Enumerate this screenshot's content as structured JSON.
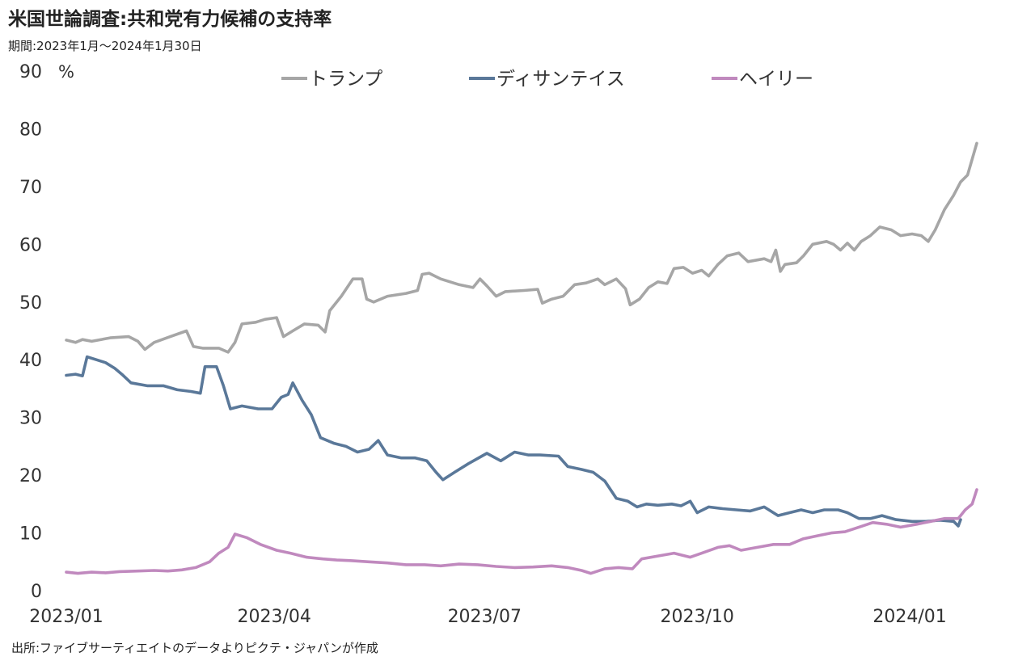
{
  "header": {
    "title": "米国世論調査:共和党有力候補の支持率",
    "period": "期間:2023年1月～2024年1月30日"
  },
  "footer": {
    "source": "出所:ファイブサーティエイトのデータよりピクテ・ジャパンが作成"
  },
  "chart_data": {
    "type": "line",
    "title": "米国世論調査:共和党有力候補の支持率",
    "subtitle": "期間:2023年1月～2024年1月30日",
    "ylabel": "%",
    "ylim": [
      0,
      90
    ],
    "yticks": [
      "0",
      "10",
      "20",
      "30",
      "40",
      "50",
      "60",
      "70",
      "80",
      "90"
    ],
    "xlim": [
      "2023-01-01",
      "2024-01-30"
    ],
    "xticks": [
      {
        "label": "2023/01",
        "date": "2023-01-01"
      },
      {
        "label": "2023/04",
        "date": "2023-04-01"
      },
      {
        "label": "2023/07",
        "date": "2023-07-01"
      },
      {
        "label": "2023/10",
        "date": "2023-10-01"
      },
      {
        "label": "2024/01",
        "date": "2024-01-01"
      }
    ],
    "grid": false,
    "legend_position": "top",
    "series": [
      {
        "name": "トランプ",
        "color": "#a6a6a6",
        "points": [
          [
            "2023-01-01",
            43.4
          ],
          [
            "2023-01-05",
            43.0
          ],
          [
            "2023-01-08",
            43.5
          ],
          [
            "2023-01-12",
            43.2
          ],
          [
            "2023-01-20",
            43.8
          ],
          [
            "2023-01-28",
            44.0
          ],
          [
            "2023-02-01",
            43.2
          ],
          [
            "2023-02-04",
            41.8
          ],
          [
            "2023-02-08",
            43.0
          ],
          [
            "2023-02-15",
            44.0
          ],
          [
            "2023-02-22",
            45.0
          ],
          [
            "2023-02-25",
            42.3
          ],
          [
            "2023-03-01",
            42.0
          ],
          [
            "2023-03-08",
            42.0
          ],
          [
            "2023-03-12",
            41.3
          ],
          [
            "2023-03-15",
            43.0
          ],
          [
            "2023-03-18",
            46.2
          ],
          [
            "2023-03-24",
            46.5
          ],
          [
            "2023-03-28",
            47.0
          ],
          [
            "2023-04-02",
            47.3
          ],
          [
            "2023-04-05",
            44.0
          ],
          [
            "2023-04-09",
            45.0
          ],
          [
            "2023-04-14",
            46.2
          ],
          [
            "2023-04-20",
            46.0
          ],
          [
            "2023-04-23",
            44.8
          ],
          [
            "2023-04-25",
            48.5
          ],
          [
            "2023-04-30",
            51.0
          ],
          [
            "2023-05-05",
            54.0
          ],
          [
            "2023-05-09",
            54.0
          ],
          [
            "2023-05-11",
            50.5
          ],
          [
            "2023-05-14",
            50.0
          ],
          [
            "2023-05-20",
            51.0
          ],
          [
            "2023-05-28",
            51.5
          ],
          [
            "2023-06-02",
            52.0
          ],
          [
            "2023-06-04",
            54.8
          ],
          [
            "2023-06-07",
            55.0
          ],
          [
            "2023-06-12",
            54.0
          ],
          [
            "2023-06-20",
            53.0
          ],
          [
            "2023-06-26",
            52.5
          ],
          [
            "2023-06-29",
            54.0
          ],
          [
            "2023-07-02",
            52.8
          ],
          [
            "2023-07-06",
            51.0
          ],
          [
            "2023-07-10",
            51.8
          ],
          [
            "2023-07-18",
            52.0
          ],
          [
            "2023-07-24",
            52.2
          ],
          [
            "2023-07-26",
            49.8
          ],
          [
            "2023-07-30",
            50.5
          ],
          [
            "2023-08-04",
            51.0
          ],
          [
            "2023-08-09",
            53.0
          ],
          [
            "2023-08-14",
            53.3
          ],
          [
            "2023-08-19",
            54.0
          ],
          [
            "2023-08-22",
            53.0
          ],
          [
            "2023-08-27",
            54.0
          ],
          [
            "2023-08-31",
            52.3
          ],
          [
            "2023-09-02",
            49.5
          ],
          [
            "2023-09-06",
            50.5
          ],
          [
            "2023-09-10",
            52.5
          ],
          [
            "2023-09-14",
            53.5
          ],
          [
            "2023-09-18",
            53.2
          ],
          [
            "2023-09-21",
            55.8
          ],
          [
            "2023-09-25",
            56.0
          ],
          [
            "2023-09-29",
            55.0
          ],
          [
            "2023-10-03",
            55.5
          ],
          [
            "2023-10-06",
            54.5
          ],
          [
            "2023-10-10",
            56.5
          ],
          [
            "2023-10-14",
            58.0
          ],
          [
            "2023-10-19",
            58.5
          ],
          [
            "2023-10-23",
            57.0
          ],
          [
            "2023-10-30",
            57.5
          ],
          [
            "2023-11-02",
            57.0
          ],
          [
            "2023-11-04",
            59.0
          ],
          [
            "2023-11-06",
            55.3
          ],
          [
            "2023-11-08",
            56.5
          ],
          [
            "2023-11-13",
            56.8
          ],
          [
            "2023-11-16",
            58.0
          ],
          [
            "2023-11-20",
            60.0
          ],
          [
            "2023-11-26",
            60.5
          ],
          [
            "2023-11-29",
            60.0
          ],
          [
            "2023-12-02",
            59.0
          ],
          [
            "2023-12-05",
            60.2
          ],
          [
            "2023-12-08",
            59.0
          ],
          [
            "2023-12-11",
            60.5
          ],
          [
            "2023-12-15",
            61.5
          ],
          [
            "2023-12-19",
            63.0
          ],
          [
            "2023-12-24",
            62.5
          ],
          [
            "2023-12-28",
            61.5
          ],
          [
            "2024-01-02",
            61.8
          ],
          [
            "2024-01-06",
            61.5
          ],
          [
            "2024-01-09",
            60.5
          ],
          [
            "2024-01-12",
            62.5
          ],
          [
            "2024-01-16",
            66.0
          ],
          [
            "2024-01-20",
            68.5
          ],
          [
            "2024-01-23",
            70.8
          ],
          [
            "2024-01-26",
            72.0
          ],
          [
            "2024-01-30",
            77.5
          ]
        ]
      },
      {
        "name": "ディサンテイス",
        "color": "#5a7899",
        "points": [
          [
            "2023-01-01",
            37.3
          ],
          [
            "2023-01-05",
            37.5
          ],
          [
            "2023-01-08",
            37.2
          ],
          [
            "2023-01-10",
            40.5
          ],
          [
            "2023-01-14",
            40.0
          ],
          [
            "2023-01-18",
            39.5
          ],
          [
            "2023-01-22",
            38.5
          ],
          [
            "2023-01-25",
            37.5
          ],
          [
            "2023-01-29",
            36.0
          ],
          [
            "2023-02-05",
            35.5
          ],
          [
            "2023-02-12",
            35.5
          ],
          [
            "2023-02-18",
            34.8
          ],
          [
            "2023-02-24",
            34.5
          ],
          [
            "2023-02-28",
            34.2
          ],
          [
            "2023-03-02",
            38.8
          ],
          [
            "2023-03-07",
            38.8
          ],
          [
            "2023-03-10",
            35.5
          ],
          [
            "2023-03-13",
            31.5
          ],
          [
            "2023-03-18",
            32.0
          ],
          [
            "2023-03-25",
            31.5
          ],
          [
            "2023-03-31",
            31.5
          ],
          [
            "2023-04-04",
            33.5
          ],
          [
            "2023-04-07",
            34.0
          ],
          [
            "2023-04-09",
            36.0
          ],
          [
            "2023-04-13",
            33.0
          ],
          [
            "2023-04-17",
            30.5
          ],
          [
            "2023-04-21",
            26.5
          ],
          [
            "2023-04-27",
            25.5
          ],
          [
            "2023-05-02",
            25.0
          ],
          [
            "2023-05-07",
            24.0
          ],
          [
            "2023-05-12",
            24.5
          ],
          [
            "2023-05-16",
            26.0
          ],
          [
            "2023-05-20",
            23.5
          ],
          [
            "2023-05-26",
            23.0
          ],
          [
            "2023-06-01",
            23.0
          ],
          [
            "2023-06-06",
            22.5
          ],
          [
            "2023-06-10",
            20.5
          ],
          [
            "2023-06-13",
            19.2
          ],
          [
            "2023-06-18",
            20.5
          ],
          [
            "2023-06-24",
            22.0
          ],
          [
            "2023-07-02",
            23.8
          ],
          [
            "2023-07-08",
            22.5
          ],
          [
            "2023-07-14",
            24.0
          ],
          [
            "2023-07-20",
            23.5
          ],
          [
            "2023-07-25",
            23.5
          ],
          [
            "2023-08-02",
            23.3
          ],
          [
            "2023-08-06",
            21.5
          ],
          [
            "2023-08-12",
            21.0
          ],
          [
            "2023-08-17",
            20.5
          ],
          [
            "2023-08-22",
            19.0
          ],
          [
            "2023-08-27",
            16.0
          ],
          [
            "2023-09-01",
            15.5
          ],
          [
            "2023-09-05",
            14.5
          ],
          [
            "2023-09-09",
            15.0
          ],
          [
            "2023-09-14",
            14.8
          ],
          [
            "2023-09-20",
            15.0
          ],
          [
            "2023-09-24",
            14.7
          ],
          [
            "2023-09-28",
            15.5
          ],
          [
            "2023-10-01",
            13.5
          ],
          [
            "2023-10-06",
            14.5
          ],
          [
            "2023-10-12",
            14.2
          ],
          [
            "2023-10-18",
            14.0
          ],
          [
            "2023-10-24",
            13.8
          ],
          [
            "2023-10-30",
            14.5
          ],
          [
            "2023-11-05",
            13.0
          ],
          [
            "2023-11-10",
            13.5
          ],
          [
            "2023-11-15",
            14.0
          ],
          [
            "2023-11-20",
            13.5
          ],
          [
            "2023-11-25",
            14.0
          ],
          [
            "2023-12-01",
            14.0
          ],
          [
            "2023-12-05",
            13.5
          ],
          [
            "2023-12-10",
            12.5
          ],
          [
            "2023-12-15",
            12.5
          ],
          [
            "2023-12-20",
            13.0
          ],
          [
            "2023-12-26",
            12.3
          ],
          [
            "2024-01-02",
            12.0
          ],
          [
            "2024-01-08",
            12.0
          ],
          [
            "2024-01-14",
            12.2
          ],
          [
            "2024-01-20",
            12.0
          ],
          [
            "2024-01-22",
            11.2
          ],
          [
            "2024-01-23",
            12.3
          ]
        ]
      },
      {
        "name": "ヘイリー",
        "color": "#c089be",
        "points": [
          [
            "2023-01-01",
            3.2
          ],
          [
            "2023-01-06",
            3.0
          ],
          [
            "2023-01-12",
            3.2
          ],
          [
            "2023-01-18",
            3.1
          ],
          [
            "2023-01-24",
            3.3
          ],
          [
            "2023-02-01",
            3.4
          ],
          [
            "2023-02-08",
            3.5
          ],
          [
            "2023-02-14",
            3.4
          ],
          [
            "2023-02-20",
            3.6
          ],
          [
            "2023-02-26",
            4.0
          ],
          [
            "2023-03-04",
            5.0
          ],
          [
            "2023-03-08",
            6.5
          ],
          [
            "2023-03-12",
            7.5
          ],
          [
            "2023-03-15",
            9.8
          ],
          [
            "2023-03-20",
            9.2
          ],
          [
            "2023-03-26",
            8.0
          ],
          [
            "2023-04-02",
            7.0
          ],
          [
            "2023-04-08",
            6.5
          ],
          [
            "2023-04-15",
            5.8
          ],
          [
            "2023-04-22",
            5.5
          ],
          [
            "2023-04-28",
            5.3
          ],
          [
            "2023-05-04",
            5.2
          ],
          [
            "2023-05-12",
            5.0
          ],
          [
            "2023-05-20",
            4.8
          ],
          [
            "2023-05-28",
            4.5
          ],
          [
            "2023-06-05",
            4.5
          ],
          [
            "2023-06-12",
            4.3
          ],
          [
            "2023-06-20",
            4.6
          ],
          [
            "2023-06-28",
            4.5
          ],
          [
            "2023-07-06",
            4.2
          ],
          [
            "2023-07-14",
            4.0
          ],
          [
            "2023-07-22",
            4.1
          ],
          [
            "2023-07-30",
            4.3
          ],
          [
            "2023-08-06",
            4.0
          ],
          [
            "2023-08-12",
            3.5
          ],
          [
            "2023-08-16",
            3.0
          ],
          [
            "2023-08-22",
            3.8
          ],
          [
            "2023-08-28",
            4.0
          ],
          [
            "2023-09-03",
            3.8
          ],
          [
            "2023-09-07",
            5.5
          ],
          [
            "2023-09-14",
            6.0
          ],
          [
            "2023-09-21",
            6.5
          ],
          [
            "2023-09-28",
            5.8
          ],
          [
            "2023-10-03",
            6.5
          ],
          [
            "2023-10-10",
            7.5
          ],
          [
            "2023-10-15",
            7.8
          ],
          [
            "2023-10-20",
            7.0
          ],
          [
            "2023-10-27",
            7.5
          ],
          [
            "2023-11-03",
            8.0
          ],
          [
            "2023-11-10",
            8.0
          ],
          [
            "2023-11-16",
            9.0
          ],
          [
            "2023-11-22",
            9.5
          ],
          [
            "2023-11-28",
            10.0
          ],
          [
            "2023-12-04",
            10.2
          ],
          [
            "2023-12-10",
            11.0
          ],
          [
            "2023-12-16",
            11.8
          ],
          [
            "2023-12-22",
            11.5
          ],
          [
            "2023-12-28",
            11.0
          ],
          [
            "2024-01-04",
            11.5
          ],
          [
            "2024-01-10",
            12.0
          ],
          [
            "2024-01-16",
            12.5
          ],
          [
            "2024-01-22",
            12.5
          ],
          [
            "2024-01-25",
            14.0
          ],
          [
            "2024-01-28",
            15.0
          ],
          [
            "2024-01-30",
            17.5
          ]
        ]
      }
    ]
  }
}
